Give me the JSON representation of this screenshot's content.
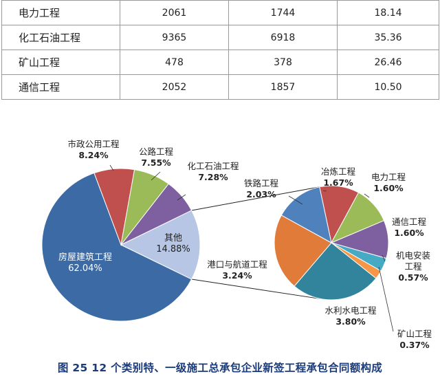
{
  "table": {
    "rows": [
      [
        "电力工程",
        "2061",
        "1744",
        "18.14"
      ],
      [
        "化工石油工程",
        "9365",
        "6918",
        "35.36"
      ],
      [
        "矿山工程",
        "478",
        "378",
        "26.46"
      ],
      [
        "通信工程",
        "2052",
        "1857",
        "10.50"
      ]
    ]
  },
  "caption": "图 25  12 个类别特、一级施工总承包企业新签工程承包合同额构成",
  "chart_data": {
    "type": "pie",
    "subtype": "pie-of-pie",
    "main_slices": [
      {
        "label": "房屋建筑工程",
        "value": 62.04,
        "display": "62.04%",
        "color": "#3b6aa5"
      },
      {
        "label": "市政公用工程",
        "value": 8.24,
        "display": "8.24%",
        "color": "#c0504d"
      },
      {
        "label": "公路工程",
        "value": 7.55,
        "display": "7.55%",
        "color": "#9bbb59"
      },
      {
        "label": "化工石油工程",
        "value": 7.28,
        "display": "7.28%",
        "color": "#7e60a0"
      },
      {
        "label": "其他",
        "value": 14.88,
        "display": "14.88%",
        "color": "#b7c6e4"
      }
    ],
    "secondary_slices": [
      {
        "label": "冶炼工程",
        "value": 1.67,
        "display": "1.67%",
        "color": "#c0504d"
      },
      {
        "label": "电力工程",
        "value": 1.6,
        "display": "1.60%",
        "color": "#9bbb59"
      },
      {
        "label": "通信工程",
        "value": 1.6,
        "display": "1.60%",
        "color": "#7e60a0"
      },
      {
        "label": "机电安装工程",
        "value": 0.57,
        "display": "0.57%",
        "color": "#46aac5"
      },
      {
        "label": "矿山工程",
        "value": 0.37,
        "display": "0.37%",
        "color": "#f79646"
      },
      {
        "label": "水利水电工程",
        "value": 3.8,
        "display": "3.80%",
        "color": "#31849b"
      },
      {
        "label": "港口与航道工程",
        "value": 3.24,
        "display": "3.24%",
        "color": "#e07b39"
      },
      {
        "label": "铁路工程",
        "value": 2.03,
        "display": "2.03%",
        "color": "#4f81bd"
      }
    ]
  }
}
